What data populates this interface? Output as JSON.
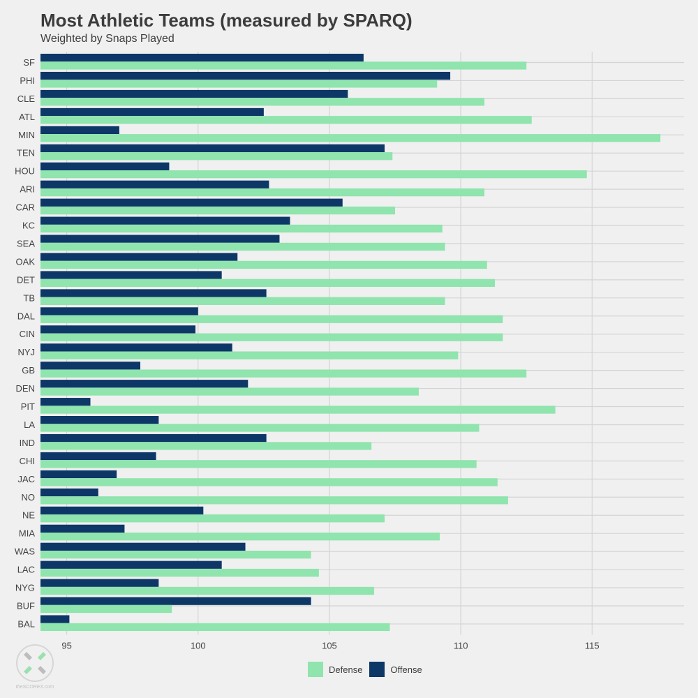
{
  "header": {
    "title": "Most Athletic Teams (measured by SPARQ)",
    "subtitle": "Weighted by Snaps Played"
  },
  "colors": {
    "defense": "#90e4ad",
    "offense": "#0d3767",
    "grid": "#d4d4d4",
    "background": "#f0f0f0"
  },
  "legend": {
    "defense_label": "Defense",
    "offense_label": "Offense"
  },
  "logo": {
    "text": "theSCOREX.com"
  },
  "chart_data": {
    "type": "bar",
    "orientation": "horizontal",
    "title": "Most Athletic Teams (measured by SPARQ)",
    "subtitle": "Weighted by Snaps Played",
    "xlim": [
      94,
      118.5
    ],
    "x_ticks": [
      95,
      100,
      105,
      110,
      115
    ],
    "grid": true,
    "legend_position": "bottom",
    "categories": [
      "SF",
      "PHI",
      "CLE",
      "ATL",
      "MIN",
      "TEN",
      "HOU",
      "ARI",
      "CAR",
      "KC",
      "SEA",
      "OAK",
      "DET",
      "TB",
      "DAL",
      "CIN",
      "NYJ",
      "GB",
      "DEN",
      "PIT",
      "LA",
      "IND",
      "CHI",
      "JAC",
      "NO",
      "NE",
      "MIA",
      "WAS",
      "LAC",
      "NYG",
      "BUF",
      "BAL"
    ],
    "series": [
      {
        "name": "Offense",
        "values": [
          106.3,
          109.6,
          105.7,
          102.5,
          97.0,
          107.1,
          98.9,
          102.7,
          105.5,
          103.5,
          103.1,
          101.5,
          100.9,
          102.6,
          100.0,
          99.9,
          101.3,
          97.8,
          101.9,
          95.9,
          98.5,
          102.6,
          98.4,
          96.9,
          96.2,
          100.2,
          97.2,
          101.8,
          100.9,
          98.5,
          104.3,
          95.1
        ]
      },
      {
        "name": "Defense",
        "values": [
          112.5,
          109.1,
          110.9,
          112.7,
          117.6,
          107.4,
          114.8,
          110.9,
          107.5,
          109.3,
          109.4,
          111.0,
          111.3,
          109.4,
          111.6,
          111.6,
          109.9,
          112.5,
          108.4,
          113.6,
          110.7,
          106.6,
          110.6,
          111.4,
          111.8,
          107.1,
          109.2,
          104.3,
          104.6,
          106.7,
          99.0,
          107.3
        ]
      }
    ]
  }
}
